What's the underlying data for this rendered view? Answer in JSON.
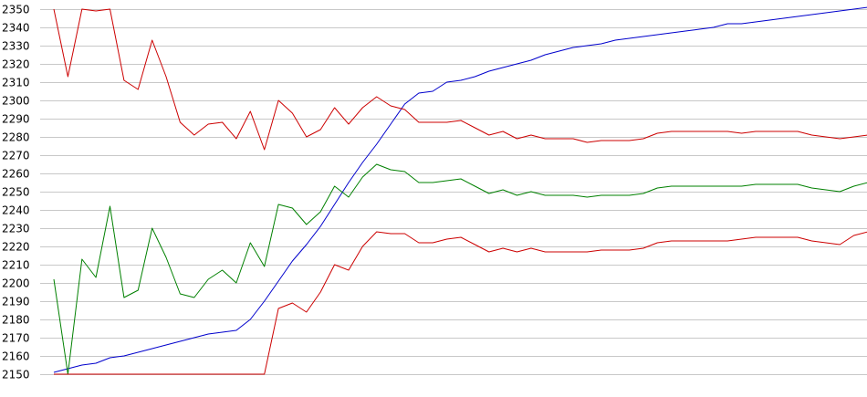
{
  "chart_data": {
    "type": "line",
    "title": "",
    "xlabel": "",
    "ylabel": "",
    "ylim": [
      2150,
      2350
    ],
    "yticks": [
      2150,
      2160,
      2170,
      2180,
      2190,
      2200,
      2210,
      2220,
      2230,
      2240,
      2250,
      2260,
      2270,
      2280,
      2290,
      2300,
      2310,
      2320,
      2330,
      2340,
      2350
    ],
    "grid": true,
    "legend": "none",
    "x": [
      0,
      1,
      2,
      3,
      4,
      5,
      6,
      7,
      8,
      9,
      10,
      11,
      12,
      13,
      14,
      15,
      16,
      17,
      18,
      19,
      20,
      21,
      22,
      23,
      24,
      25,
      26,
      27,
      28,
      29,
      30,
      31,
      32,
      33,
      34,
      35,
      36,
      37,
      38,
      39,
      40,
      41,
      42,
      43,
      44,
      45,
      46,
      47,
      48,
      49,
      50,
      51,
      52,
      53,
      54,
      55,
      56,
      57,
      58
    ],
    "series": [
      {
        "color": "#0000cc",
        "values": [
          2151,
          2153,
          2155,
          2156,
          2159,
          2160,
          2162,
          2164,
          2166,
          2168,
          2170,
          2172,
          2173,
          2174,
          2180,
          2190,
          2201,
          2212,
          2221,
          2231,
          2243,
          2255,
          2266,
          2276,
          2287,
          2298,
          2304,
          2305,
          2310,
          2311,
          2313,
          2316,
          2318,
          2320,
          2322,
          2325,
          2327,
          2329,
          2330,
          2331,
          2333,
          2334,
          2335,
          2336,
          2337,
          2338,
          2339,
          2340,
          2342,
          2342,
          2343,
          2344,
          2345,
          2346,
          2347,
          2348,
          2349,
          2350,
          2351
        ]
      },
      {
        "color": "#cc0000",
        "values": [
          2350,
          2313,
          2350,
          2349,
          2350,
          2311,
          2306,
          2333,
          2313,
          2288,
          2281,
          2287,
          2288,
          2279,
          2294,
          2273,
          2300,
          2293,
          2280,
          2284,
          2296,
          2287,
          2296,
          2302,
          2297,
          2295,
          2288,
          2288,
          2288,
          2289,
          2285,
          2281,
          2283,
          2279,
          2281,
          2279,
          2279,
          2279,
          2277,
          2278,
          2278,
          2278,
          2279,
          2282,
          2283,
          2283,
          2283,
          2283,
          2283,
          2282,
          2283,
          2283,
          2283,
          2283,
          2281,
          2280,
          2279,
          2280,
          2281
        ]
      },
      {
        "color": "#008000",
        "values": [
          2202,
          2150,
          2213,
          2203,
          2242,
          2192,
          2196,
          2230,
          2214,
          2194,
          2192,
          2202,
          2207,
          2200,
          2222,
          2209,
          2243,
          2241,
          2232,
          2239,
          2253,
          2247,
          2258,
          2265,
          2262,
          2261,
          2255,
          2255,
          2256,
          2257,
          2253,
          2249,
          2251,
          2248,
          2250,
          2248,
          2248,
          2248,
          2247,
          2248,
          2248,
          2248,
          2249,
          2252,
          2253,
          2253,
          2253,
          2253,
          2253,
          2253,
          2254,
          2254,
          2254,
          2254,
          2252,
          2251,
          2250,
          2253,
          2255
        ]
      },
      {
        "color": "#cc0000",
        "values": [
          2150,
          2150,
          2150,
          2150,
          2150,
          2150,
          2150,
          2150,
          2150,
          2150,
          2150,
          2150,
          2150,
          2150,
          2150,
          2150,
          2186,
          2189,
          2184,
          2195,
          2210,
          2207,
          2220,
          2228,
          2227,
          2227,
          2222,
          2222,
          2224,
          2225,
          2221,
          2217,
          2219,
          2217,
          2219,
          2217,
          2217,
          2217,
          2217,
          2218,
          2218,
          2218,
          2219,
          2222,
          2223,
          2223,
          2223,
          2223,
          2223,
          2224,
          2225,
          2225,
          2225,
          2225,
          2223,
          2222,
          2221,
          2226,
          2228
        ]
      }
    ]
  }
}
